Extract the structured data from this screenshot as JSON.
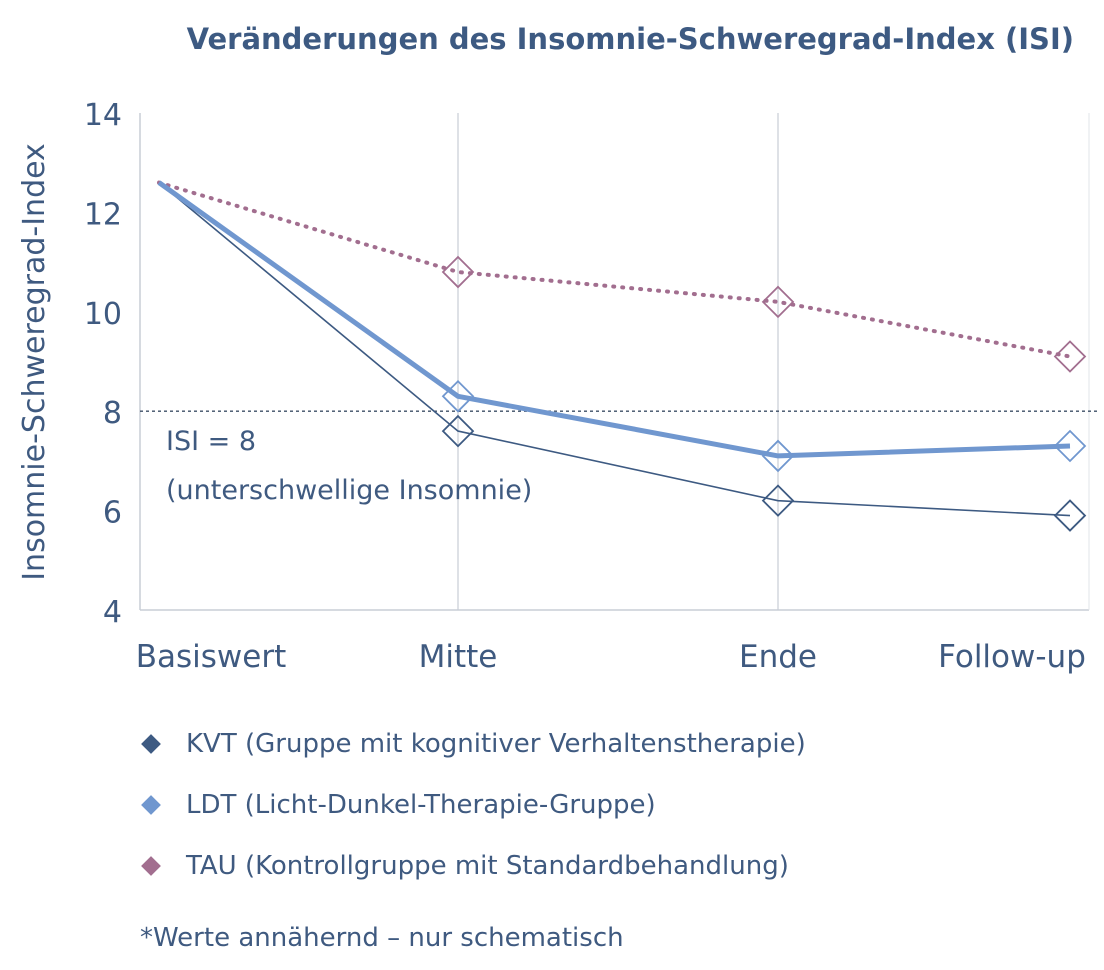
{
  "chart_data": {
    "type": "line",
    "title": "Veränderungen des Insomnie-Schweregrad-Index (ISI)",
    "ylabel": "Insomnie-Schweregrad-Index",
    "xlabel": "",
    "categories": [
      "Basiswert",
      "Mitte",
      "Ende",
      "Follow-up"
    ],
    "ylim": [
      4,
      14
    ],
    "yticks": [
      4,
      6,
      8,
      10,
      12,
      14
    ],
    "grid": "vertical",
    "series": [
      {
        "name": "KVT (Gruppe mit kognitiver Verhaltenstherapie)",
        "values": [
          12.6,
          7.6,
          6.2,
          5.9
        ],
        "color": "#3d5a82",
        "style": "thin"
      },
      {
        "name": "LDT (Licht-Dunkel-Therapie-Gruppe)",
        "values": [
          12.6,
          8.3,
          7.1,
          7.3
        ],
        "color": "#7097cf",
        "style": "thick"
      },
      {
        "name": "TAU (Kontrollgruppe mit Standardbehandlung)",
        "values": [
          12.6,
          10.8,
          10.2,
          9.1
        ],
        "color": "#a26e8f",
        "style": "dotted"
      }
    ],
    "reference_line": {
      "value": 8,
      "label_line1": "ISI = 8",
      "label_line2": "(unterschwellige Insomnie)"
    },
    "footnote": "*Werte annähernd – nur schematisch"
  }
}
